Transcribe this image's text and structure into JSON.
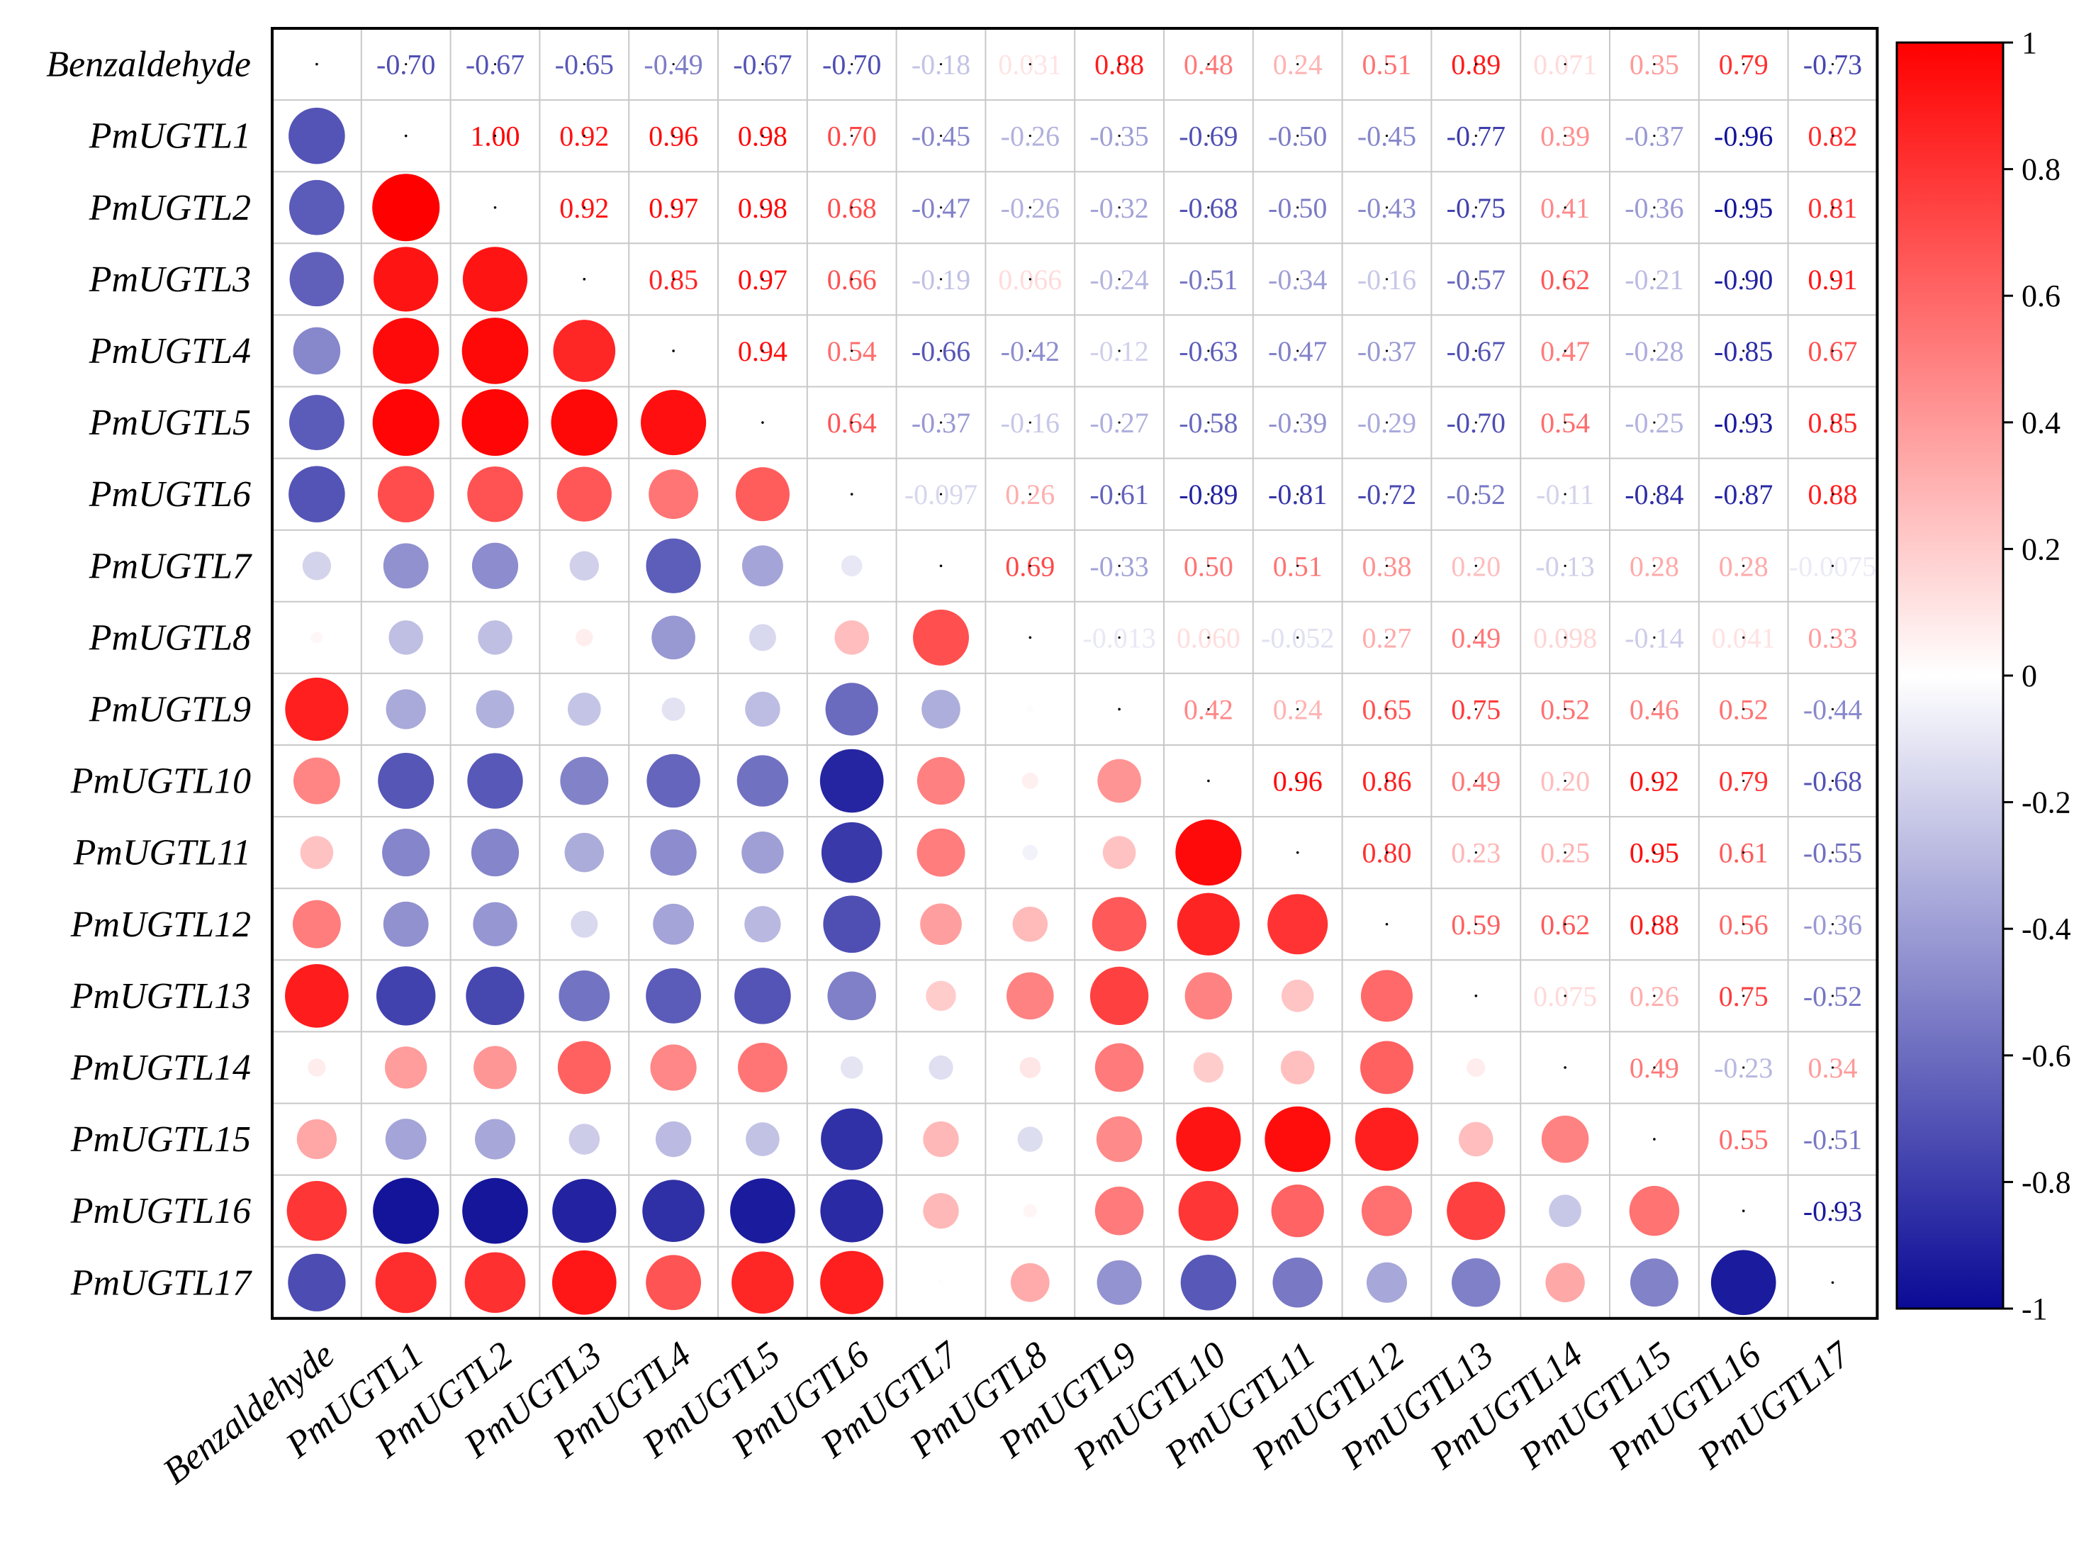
{
  "chart_data": {
    "type": "heatmap",
    "subtype": "correlation matrix (upper triangle: coefficient labels, lower triangle: circles sized and colored by coefficient)",
    "variables": [
      "Benzaldehyde",
      "PmUGTL1",
      "PmUGTL2",
      "PmUGTL3",
      "PmUGTL4",
      "PmUGTL5",
      "PmUGTL6",
      "PmUGTL7",
      "PmUGTL8",
      "PmUGTL9",
      "PmUGTL10",
      "PmUGTL11",
      "PmUGTL12",
      "PmUGTL13",
      "PmUGTL14",
      "PmUGTL15",
      "PmUGTL16",
      "PmUGTL17"
    ],
    "matrix": [
      [
        1,
        -0.7,
        -0.67,
        -0.65,
        -0.49,
        -0.67,
        -0.7,
        -0.18,
        0.031,
        0.88,
        0.48,
        0.24,
        0.51,
        0.89,
        0.071,
        0.35,
        0.79,
        -0.73
      ],
      [
        -0.7,
        1,
        1.0,
        0.92,
        0.96,
        0.98,
        0.7,
        -0.45,
        -0.26,
        -0.35,
        -0.69,
        -0.5,
        -0.45,
        -0.77,
        0.39,
        -0.37,
        -0.96,
        0.82
      ],
      [
        -0.67,
        1.0,
        1,
        0.92,
        0.97,
        0.98,
        0.68,
        -0.47,
        -0.26,
        -0.32,
        -0.68,
        -0.5,
        -0.43,
        -0.75,
        0.41,
        -0.36,
        -0.95,
        0.81
      ],
      [
        -0.65,
        0.92,
        0.92,
        1,
        0.85,
        0.97,
        0.66,
        -0.19,
        0.066,
        -0.24,
        -0.51,
        -0.34,
        -0.16,
        -0.57,
        0.62,
        -0.21,
        -0.9,
        0.91
      ],
      [
        -0.49,
        0.96,
        0.97,
        0.85,
        1,
        0.94,
        0.54,
        -0.66,
        -0.42,
        -0.12,
        -0.63,
        -0.47,
        -0.37,
        -0.67,
        0.47,
        -0.28,
        -0.85,
        0.67
      ],
      [
        -0.67,
        0.98,
        0.98,
        0.97,
        0.94,
        1,
        0.64,
        -0.37,
        -0.16,
        -0.27,
        -0.58,
        -0.39,
        -0.29,
        -0.7,
        0.54,
        -0.25,
        -0.93,
        0.85
      ],
      [
        -0.7,
        0.7,
        0.68,
        0.66,
        0.54,
        0.64,
        1,
        -0.097,
        0.26,
        -0.61,
        -0.89,
        -0.81,
        -0.72,
        -0.52,
        -0.11,
        -0.84,
        -0.87,
        0.88
      ],
      [
        -0.18,
        -0.45,
        -0.47,
        -0.19,
        -0.66,
        -0.37,
        -0.097,
        1,
        0.69,
        -0.33,
        0.5,
        0.51,
        0.38,
        0.2,
        -0.13,
        0.28,
        0.28,
        -0.0075
      ],
      [
        0.031,
        -0.26,
        -0.26,
        0.066,
        -0.42,
        -0.16,
        0.26,
        0.69,
        1,
        -0.013,
        0.06,
        -0.052,
        0.27,
        0.49,
        0.098,
        -0.14,
        0.041,
        0.33
      ],
      [
        0.88,
        -0.35,
        -0.32,
        -0.24,
        -0.12,
        -0.27,
        -0.61,
        -0.33,
        -0.013,
        1,
        0.42,
        0.24,
        0.65,
        0.75,
        0.52,
        0.46,
        0.52,
        -0.44
      ],
      [
        0.48,
        -0.69,
        -0.68,
        -0.51,
        -0.63,
        -0.58,
        -0.89,
        0.5,
        0.06,
        0.42,
        1,
        0.96,
        0.86,
        0.49,
        0.2,
        0.92,
        0.79,
        -0.68
      ],
      [
        0.24,
        -0.5,
        -0.5,
        -0.34,
        -0.47,
        -0.39,
        -0.81,
        0.51,
        -0.052,
        0.24,
        0.96,
        1,
        0.8,
        0.23,
        0.25,
        0.95,
        0.61,
        -0.55
      ],
      [
        0.51,
        -0.45,
        -0.43,
        -0.16,
        -0.37,
        -0.29,
        -0.72,
        0.38,
        0.27,
        0.65,
        0.86,
        0.8,
        1,
        0.59,
        0.62,
        0.88,
        0.56,
        -0.36
      ],
      [
        0.89,
        -0.77,
        -0.75,
        -0.57,
        -0.67,
        -0.7,
        -0.52,
        0.2,
        0.49,
        0.75,
        0.49,
        0.23,
        0.59,
        1,
        0.075,
        0.26,
        0.75,
        -0.52
      ],
      [
        0.071,
        0.39,
        0.41,
        0.62,
        0.47,
        0.54,
        -0.11,
        -0.13,
        0.098,
        0.52,
        0.2,
        0.25,
        0.62,
        0.075,
        1,
        0.49,
        -0.23,
        0.34
      ],
      [
        0.35,
        -0.37,
        -0.36,
        -0.21,
        -0.28,
        -0.25,
        -0.84,
        0.28,
        -0.14,
        0.46,
        0.92,
        0.95,
        0.88,
        0.26,
        0.49,
        1,
        0.55,
        -0.51
      ],
      [
        0.79,
        -0.96,
        -0.95,
        -0.9,
        -0.85,
        -0.93,
        -0.87,
        0.28,
        0.041,
        0.52,
        0.79,
        0.61,
        0.56,
        0.75,
        -0.23,
        0.55,
        1,
        -0.93
      ],
      [
        -0.73,
        0.82,
        0.81,
        0.91,
        0.67,
        0.85,
        0.88,
        -0.0075,
        0.33,
        -0.44,
        -0.68,
        -0.55,
        -0.36,
        -0.52,
        0.34,
        -0.51,
        -0.93,
        1
      ]
    ],
    "upper_labels": [
      [
        "",
        "-0.70",
        "-0.67",
        "-0.65",
        "-0.49",
        "-0.67",
        "-0.70",
        "-0.18",
        "0.031",
        "0.88",
        "0.48",
        "0.24",
        "0.51",
        "0.89",
        "0.071",
        "0.35",
        "0.79",
        "-0.73"
      ],
      [
        "",
        "",
        "1.00",
        "0.92",
        "0.96",
        "0.98",
        "0.70",
        "-0.45",
        "-0.26",
        "-0.35",
        "-0.69",
        "-0.50",
        "-0.45",
        "-0.77",
        "0.39",
        "-0.37",
        "-0.96",
        "0.82"
      ],
      [
        "",
        "",
        "",
        "0.92",
        "0.97",
        "0.98",
        "0.68",
        "-0.47",
        "-0.26",
        "-0.32",
        "-0.68",
        "-0.50",
        "-0.43",
        "-0.75",
        "0.41",
        "-0.36",
        "-0.95",
        "0.81"
      ],
      [
        "",
        "",
        "",
        "",
        "0.85",
        "0.97",
        "0.66",
        "-0.19",
        "0.066",
        "-0.24",
        "-0.51",
        "-0.34",
        "-0.16",
        "-0.57",
        "0.62",
        "-0.21",
        "-0.90",
        "0.91"
      ],
      [
        "",
        "",
        "",
        "",
        "",
        "0.94",
        "0.54",
        "-0.66",
        "-0.42",
        "-0.12",
        "-0.63",
        "-0.47",
        "-0.37",
        "-0.67",
        "0.47",
        "-0.28",
        "-0.85",
        "0.67"
      ],
      [
        "",
        "",
        "",
        "",
        "",
        "",
        "0.64",
        "-0.37",
        "-0.16",
        "-0.27",
        "-0.58",
        "-0.39",
        "-0.29",
        "-0.70",
        "0.54",
        "-0.25",
        "-0.93",
        "0.85"
      ],
      [
        "",
        "",
        "",
        "",
        "",
        "",
        "",
        "-0.097",
        "0.26",
        "-0.61",
        "-0.89",
        "-0.81",
        "-0.72",
        "-0.52",
        "-0.11",
        "-0.84",
        "-0.87",
        "0.88"
      ],
      [
        "",
        "",
        "",
        "",
        "",
        "",
        "",
        "",
        "0.69",
        "-0.33",
        "0.50",
        "0.51",
        "0.38",
        "0.20",
        "-0.13",
        "0.28",
        "0.28",
        "-0.0075"
      ],
      [
        "",
        "",
        "",
        "",
        "",
        "",
        "",
        "",
        "",
        "-0.013",
        "0.060",
        "-0.052",
        "0.27",
        "0.49",
        "0.098",
        "-0.14",
        "0.041",
        "0.33"
      ],
      [
        "",
        "",
        "",
        "",
        "",
        "",
        "",
        "",
        "",
        "",
        "0.42",
        "0.24",
        "0.65",
        "0.75",
        "0.52",
        "0.46",
        "0.52",
        "-0.44"
      ],
      [
        "",
        "",
        "",
        "",
        "",
        "",
        "",
        "",
        "",
        "",
        "",
        "0.96",
        "0.86",
        "0.49",
        "0.20",
        "0.92",
        "0.79",
        "-0.68"
      ],
      [
        "",
        "",
        "",
        "",
        "",
        "",
        "",
        "",
        "",
        "",
        "",
        "",
        "0.80",
        "0.23",
        "0.25",
        "0.95",
        "0.61",
        "-0.55"
      ],
      [
        "",
        "",
        "",
        "",
        "",
        "",
        "",
        "",
        "",
        "",
        "",
        "",
        "",
        "0.59",
        "0.62",
        "0.88",
        "0.56",
        "-0.36"
      ],
      [
        "",
        "",
        "",
        "",
        "",
        "",
        "",
        "",
        "",
        "",
        "",
        "",
        "",
        "",
        "0.075",
        "0.26",
        "0.75",
        "-0.52"
      ],
      [
        "",
        "",
        "",
        "",
        "",
        "",
        "",
        "",
        "",
        "",
        "",
        "",
        "",
        "",
        "",
        "0.49",
        "-0.23",
        "0.34"
      ],
      [
        "",
        "",
        "",
        "",
        "",
        "",
        "",
        "",
        "",
        "",
        "",
        "",
        "",
        "",
        "",
        "",
        "0.55",
        "-0.51"
      ],
      [
        "",
        "",
        "",
        "",
        "",
        "",
        "",
        "",
        "",
        "",
        "",
        "",
        "",
        "",
        "",
        "",
        "",
        "-0.93"
      ],
      [
        "",
        "",
        "",
        "",
        "",
        "",
        "",
        "",
        "",
        "",
        "",
        "",
        "",
        "",
        "",
        "",
        "",
        ""
      ]
    ],
    "colorbar": {
      "range": [
        -1,
        1
      ],
      "ticks": [
        1,
        0.8,
        0.6,
        0.4,
        0.2,
        0,
        -0.2,
        -0.4,
        -0.6,
        -0.8,
        -1
      ],
      "tick_labels": [
        "1",
        "0.8",
        "0.6",
        "0.4",
        "0.2",
        "0",
        "-0.2",
        "-0.4",
        "-0.6",
        "-0.8",
        "-1"
      ],
      "colors": {
        "negative": "#0a0a96",
        "zero": "#ffffff",
        "positive": "#ff0000"
      },
      "position": "right"
    },
    "title": "",
    "xlabel": "",
    "ylabel": "",
    "grid": true
  }
}
